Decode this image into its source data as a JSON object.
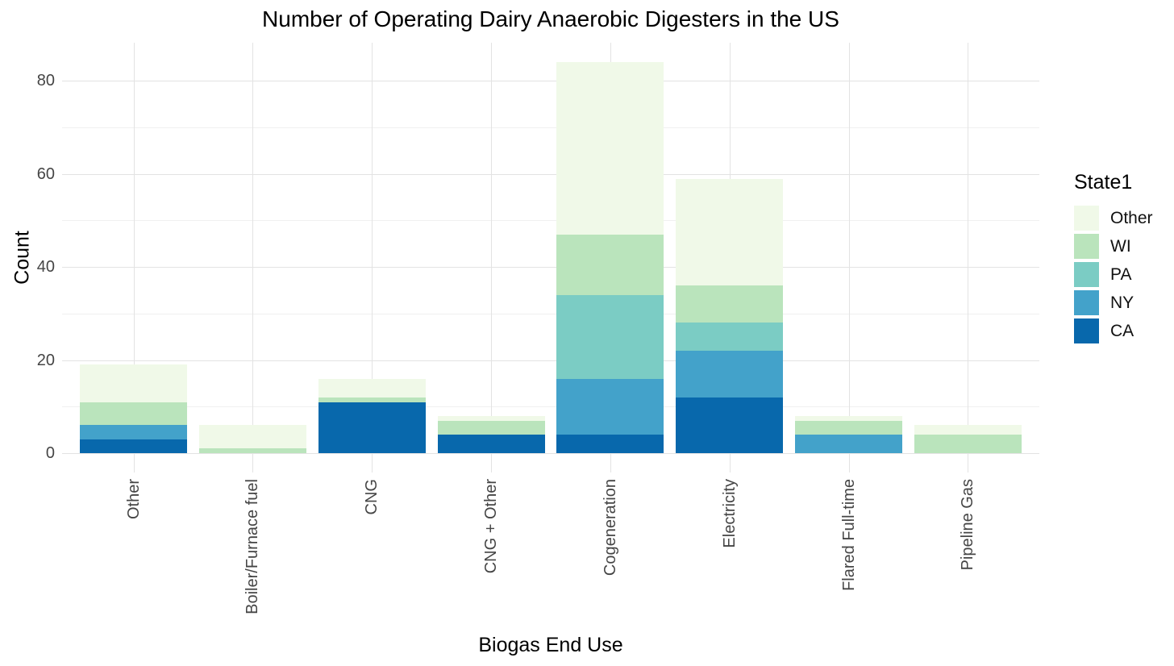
{
  "chart_data": {
    "type": "bar",
    "variant": "stacked-vertical",
    "title": "Number of Operating Dairy Anaerobic Digesters in the US",
    "xlabel": "Biogas End Use",
    "ylabel": "Count",
    "legend_title": "State1",
    "legend_position": "right",
    "legend_order_top_to_bottom": [
      "Other",
      "WI",
      "PA",
      "NY",
      "CA"
    ],
    "grid": "major and minor horizontal, major vertical at category centers",
    "background": "#ffffff",
    "gridline_color": "#e3e3e3",
    "categories": [
      "Other",
      "Boiler/Furnace fuel",
      "CNG",
      "CNG + Other",
      "Cogeneration",
      "Electricity",
      "Flared Full-time",
      "Pipeline Gas"
    ],
    "y_ticks": [
      0,
      20,
      40,
      60,
      80
    ],
    "y_minor_ticks": [
      10,
      30,
      50,
      70
    ],
    "ylim": [
      0,
      88
    ],
    "stack_order_bottom_to_top": [
      "CA",
      "NY",
      "PA",
      "WI",
      "Other"
    ],
    "series": [
      {
        "name": "CA",
        "color": "#0868ac",
        "values": [
          3,
          0,
          11,
          4,
          4,
          12,
          0,
          0
        ]
      },
      {
        "name": "NY",
        "color": "#43a2ca",
        "values": [
          3,
          0,
          0,
          0,
          12,
          10,
          4,
          0
        ]
      },
      {
        "name": "PA",
        "color": "#7bccc4",
        "values": [
          0,
          0,
          0,
          0,
          18,
          6,
          0,
          0
        ]
      },
      {
        "name": "WI",
        "color": "#bae4bc",
        "values": [
          5,
          1,
          1,
          3,
          13,
          8,
          3,
          4
        ]
      },
      {
        "name": "Other",
        "color": "#f0f9e8",
        "values": [
          8,
          5,
          4,
          1,
          37,
          23,
          1,
          2
        ]
      }
    ],
    "bar_totals": [
      19,
      6,
      16,
      8,
      84,
      59,
      8,
      6
    ]
  }
}
